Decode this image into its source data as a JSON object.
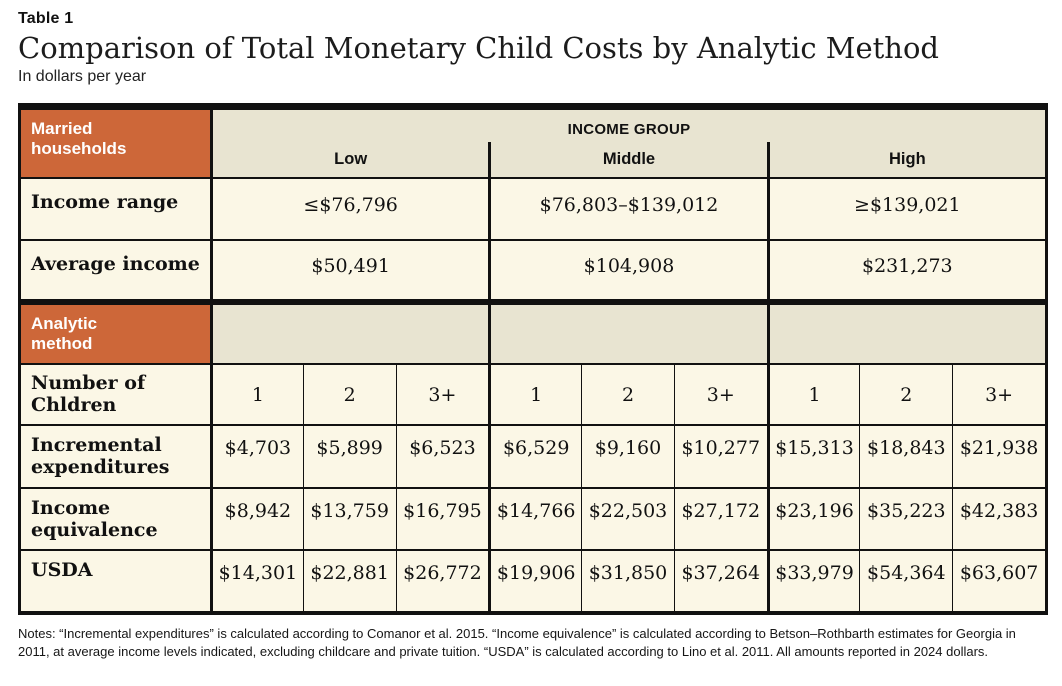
{
  "page": {
    "eyebrow": "Table 1",
    "title": "Comparison of Total Monetary Child Costs by Analytic Method",
    "subtitle": "In dollars per year",
    "notes": "Notes: “Incremental expenditures” is calculated according to Comanor et al. 2015. “Income equivalence” is calculated according to Betson–Rothbarth estimates for Georgia in 2011, at average income levels indicated, excluding childcare and private tuition. “USDA” is calculated according to Lino et al. 2011. All amounts reported in 2024 dollars."
  },
  "colors": {
    "accent_orange": "#CD6739",
    "band_beige": "#E8E4D1",
    "cell_cream": "#FBF7E6",
    "border_black": "#111111"
  },
  "table": {
    "row_group_1_header": "Married households",
    "income_group_label": "INCOME GROUP",
    "group_headers": [
      "Low",
      "Middle",
      "High"
    ],
    "income_range": {
      "label": "Income range",
      "values": [
        "≤$76,796",
        "$76,803–$139,012",
        "≥$139,021"
      ]
    },
    "average_income": {
      "label": "Average income",
      "values": [
        "$50,491",
        "$104,908",
        "$231,273"
      ]
    },
    "row_group_2_header": "Analytic method",
    "children_header": {
      "label": "Number of Chldren",
      "values": [
        "1",
        "2",
        "3+",
        "1",
        "2",
        "3+",
        "1",
        "2",
        "3+"
      ]
    },
    "method_rows": [
      {
        "label": "Incremental expenditures",
        "values": [
          "$4,703",
          "$5,899",
          "$6,523",
          "$6,529",
          "$9,160",
          "$10,277",
          "$15,313",
          "$18,843",
          "$21,938"
        ]
      },
      {
        "label": "Income equivalence",
        "values": [
          "$8,942",
          "$13,759",
          "$16,795",
          "$14,766",
          "$22,503",
          "$27,172",
          "$23,196",
          "$35,223",
          "$42,383"
        ]
      },
      {
        "label": "USDA",
        "values": [
          "$14,301",
          "$22,881",
          "$26,772",
          "$19,906",
          "$31,850",
          "$37,264",
          "$33,979",
          "$54,364",
          "$63,607"
        ]
      }
    ]
  }
}
